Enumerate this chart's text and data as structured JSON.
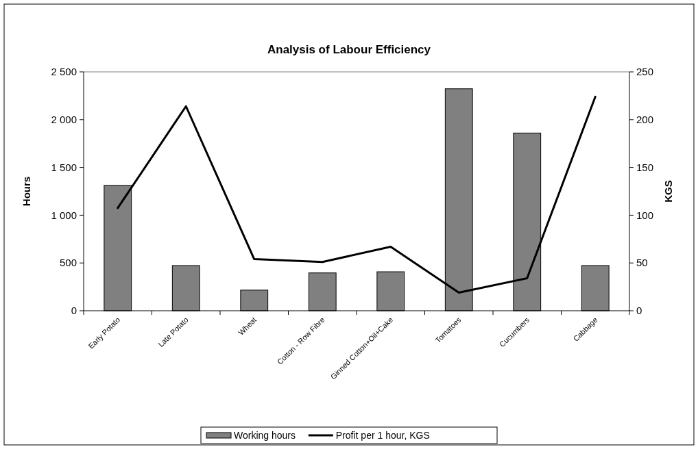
{
  "chart_data": {
    "type": "bar",
    "title": "Analysis of Labour Efficiency",
    "ylabel": "Hours",
    "y2label": "KGS",
    "categories": [
      "Early Potato",
      "Late Potato",
      "Wheat",
      "Cotton - Row Fibre",
      "Ginned Cotton+Oil+Cake",
      "Tomatoes",
      "Cucumbers",
      "Cabbage"
    ],
    "series": [
      {
        "name": "Working hours",
        "color": "#808080",
        "values": [
          1312,
          473,
          216,
          396,
          408,
          2323,
          1860,
          473
        ]
      },
      {
        "name": "Profit per 1 hour, KGS",
        "type": "line",
        "axis": "y2",
        "color": "#000000",
        "values": [
          107.5,
          214,
          54,
          51,
          67,
          19,
          34,
          224
        ]
      }
    ],
    "ylim": [
      0,
      2500
    ],
    "yticks": [
      {
        "value": 0,
        "label": "0"
      },
      {
        "value": 500,
        "label": "500"
      },
      {
        "value": 1000,
        "label": "1 000"
      },
      {
        "value": 1500,
        "label": "1 500"
      },
      {
        "value": 2000,
        "label": "2 000"
      },
      {
        "value": 2500,
        "label": "2 500"
      }
    ],
    "y2lim": [
      0,
      250
    ],
    "y2ticks": [
      0,
      50,
      100,
      150,
      200,
      250
    ],
    "grid": false,
    "legend": "bottom"
  }
}
